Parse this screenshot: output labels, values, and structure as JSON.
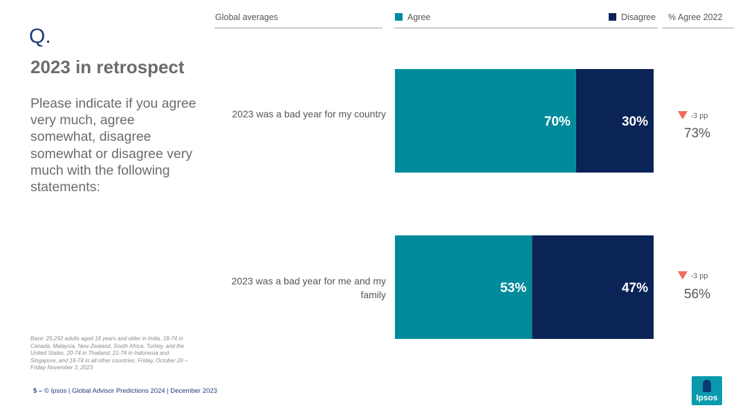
{
  "slide": {
    "q_mark": "Q.",
    "title": "2023 in retrospect",
    "question": "Please indicate if you agree very much, agree somewhat, disagree somewhat or disagree very much with the following statements:",
    "base_note": "Base: 25,292 adults aged 18 years and older in India, 18-74 in Canada, Malaysia, New Zealand, South Africa, Turkey, and the United States, 20-74 in Thailand, 21-74 in Indonesia and Singapore, and 16-74 in all other countries. Friday, October 20 – Friday November 3, 2023",
    "footer_page": "5 –",
    "footer_text": "© Ipsos | Global Advisor Predictions 2024 | December 2023",
    "logo_text": "Ipsos"
  },
  "header": {
    "group_label": "Global averages",
    "agree_label": "Agree",
    "disagree_label": "Disagree",
    "prev_label": "% Agree 2022"
  },
  "colors": {
    "agree": "#008b9b",
    "disagree": "#0b2457",
    "delta_down": "#f26b5b"
  },
  "chart_data": {
    "type": "bar",
    "orientation": "horizontal",
    "stacked": true,
    "categories": [
      "2023 was a bad year for my country",
      "2023 was a bad year for me and my family"
    ],
    "series": [
      {
        "name": "Agree",
        "values": [
          70,
          53
        ],
        "labels": [
          "70%",
          "53%"
        ]
      },
      {
        "name": "Disagree",
        "values": [
          30,
          47
        ],
        "labels": [
          "30%",
          "47%"
        ]
      }
    ],
    "xlim": [
      0,
      100
    ],
    "agree_2022": {
      "labels": [
        "73%",
        "56%"
      ],
      "values": [
        73,
        56
      ]
    },
    "change": {
      "labels": [
        "-3 pp",
        "-3 pp"
      ],
      "values": [
        -3,
        -3
      ],
      "direction": [
        "down",
        "down"
      ]
    },
    "legend_position": "top"
  }
}
